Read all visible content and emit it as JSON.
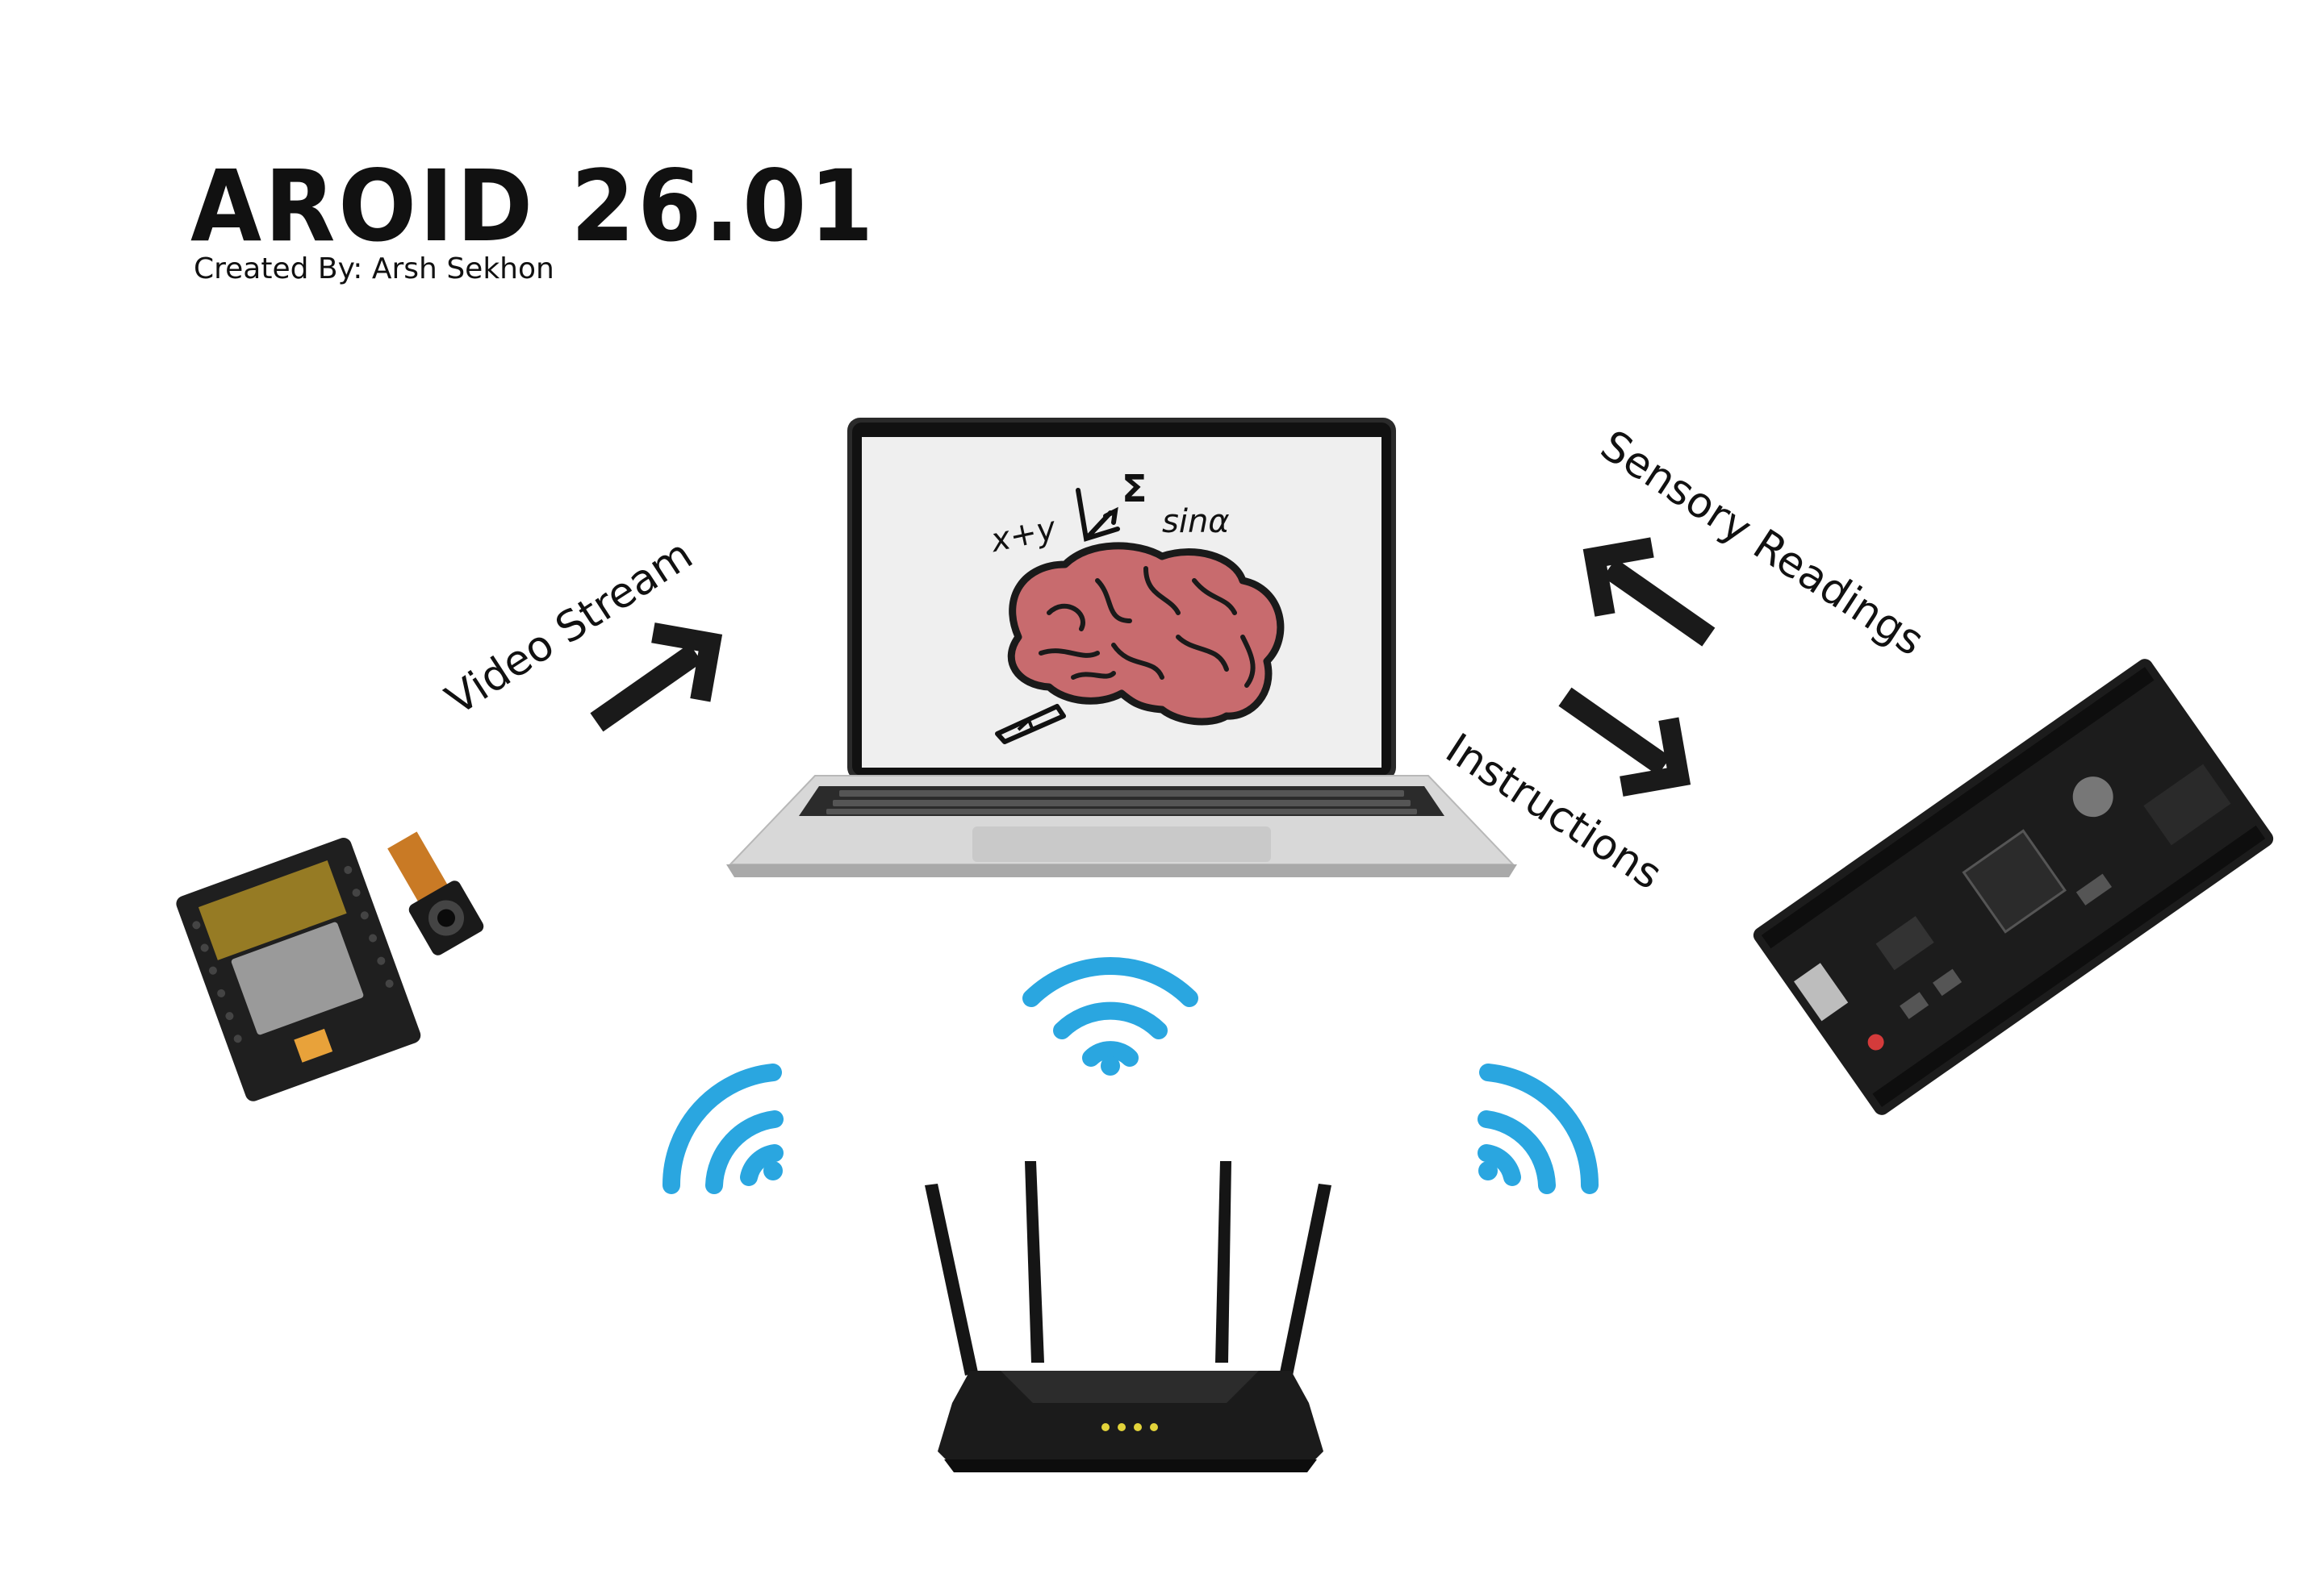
{
  "header": {
    "title": "AROID 26.01",
    "credit": "Created By: Arsh Sekhon"
  },
  "labels": {
    "video_stream": "Video Stream",
    "sensory_readings": "Sensory Readings",
    "instructions": "Instructions"
  },
  "laptop_screen": {
    "equation_1": "x+y",
    "equation_2": "Σ",
    "equation_3": "sinα"
  },
  "colors": {
    "wifi": "#2aa6e0",
    "brain_fill": "#c86b6e",
    "text": "#111111",
    "pcb": "#1c1c1c"
  },
  "icons": [
    "wifi-icon",
    "arrow-icon",
    "brain-icon",
    "router-icon",
    "camera-module-icon",
    "microcontroller-board-icon",
    "laptop-icon"
  ]
}
